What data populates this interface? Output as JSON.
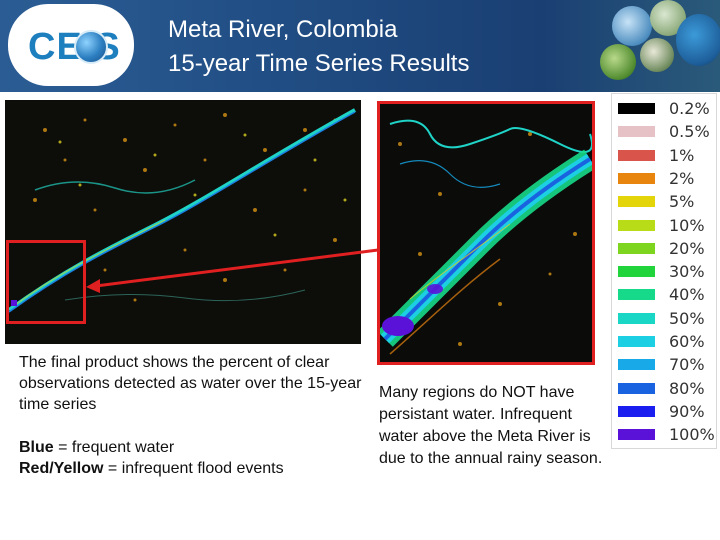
{
  "header": {
    "logo_text": "CE  S",
    "title_line1": "Meta River, Colombia",
    "title_line2": "15-year Time Series Results"
  },
  "left_text": {
    "paragraph": "The final product shows the percent of clear observations detected as water over the 15-year time series",
    "blue_label": "Blue",
    "blue_desc": " = frequent water",
    "red_label": "Red/Yellow",
    "red_desc": " = infrequent flood events"
  },
  "right_text": {
    "paragraph": "Many regions do NOT have persistant water. Infrequent water above the Meta River is due to the annual rainy season."
  },
  "legend": {
    "items": [
      {
        "label": "0.2%",
        "color": "#000000"
      },
      {
        "label": "0.5%",
        "color": "#e6c2c6"
      },
      {
        "label": "1%",
        "color": "#d9544a"
      },
      {
        "label": "2%",
        "color": "#e8850f"
      },
      {
        "label": "5%",
        "color": "#e4d40a"
      },
      {
        "label": "10%",
        "color": "#b9dc19"
      },
      {
        "label": "20%",
        "color": "#7ed51f"
      },
      {
        "label": "30%",
        "color": "#22d43b"
      },
      {
        "label": "40%",
        "color": "#17d98a"
      },
      {
        "label": "50%",
        "color": "#1ad6c4"
      },
      {
        "label": "60%",
        "color": "#1ccfe2"
      },
      {
        "label": "70%",
        "color": "#17a9e8"
      },
      {
        "label": "80%",
        "color": "#1a63e0"
      },
      {
        "label": "90%",
        "color": "#1a1ff0"
      },
      {
        "label": "100%",
        "color": "#5a12d8"
      }
    ]
  }
}
